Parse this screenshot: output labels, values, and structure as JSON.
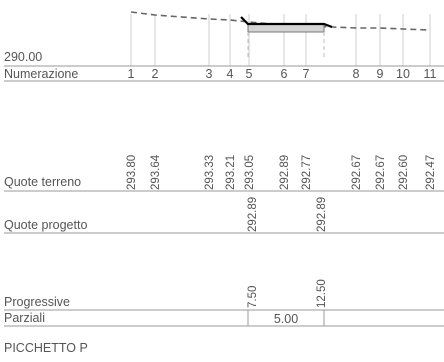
{
  "datum_label": "290.00",
  "rows": {
    "numerazione": "Numerazione",
    "quote_terreno": "Quote terreno",
    "quote_progetto": "Quote progetto",
    "progressive": "Progressive",
    "parziali": "Parziali"
  },
  "picchetti": [
    {
      "numero": "1",
      "quota_terreno": "293.80"
    },
    {
      "numero": "2",
      "quota_terreno": "293.64"
    },
    {
      "numero": "3",
      "quota_terreno": "293.33"
    },
    {
      "numero": "4",
      "quota_terreno": "293.21"
    },
    {
      "numero": "5",
      "quota_terreno": "293.05"
    },
    {
      "numero": "6",
      "quota_terreno": "292.89"
    },
    {
      "numero": "7",
      "quota_terreno": "292.77"
    },
    {
      "numero": "8",
      "quota_terreno": "292.67"
    },
    {
      "numero": "9",
      "quota_terreno": "292.67"
    },
    {
      "numero": "10",
      "quota_terreno": "292.60"
    },
    {
      "numero": "11",
      "quota_terreno": "292.47"
    }
  ],
  "quote_progetto": [
    "292.89",
    "292.89"
  ],
  "progressive": [
    "7.50",
    "12.50"
  ],
  "parziale": "5.00",
  "footer": "PICCHETTO P",
  "colors": {
    "terrain_line": "#666666",
    "design_line": "#000000",
    "structure_fill": "#d4d4d4",
    "text": "#555555"
  }
}
